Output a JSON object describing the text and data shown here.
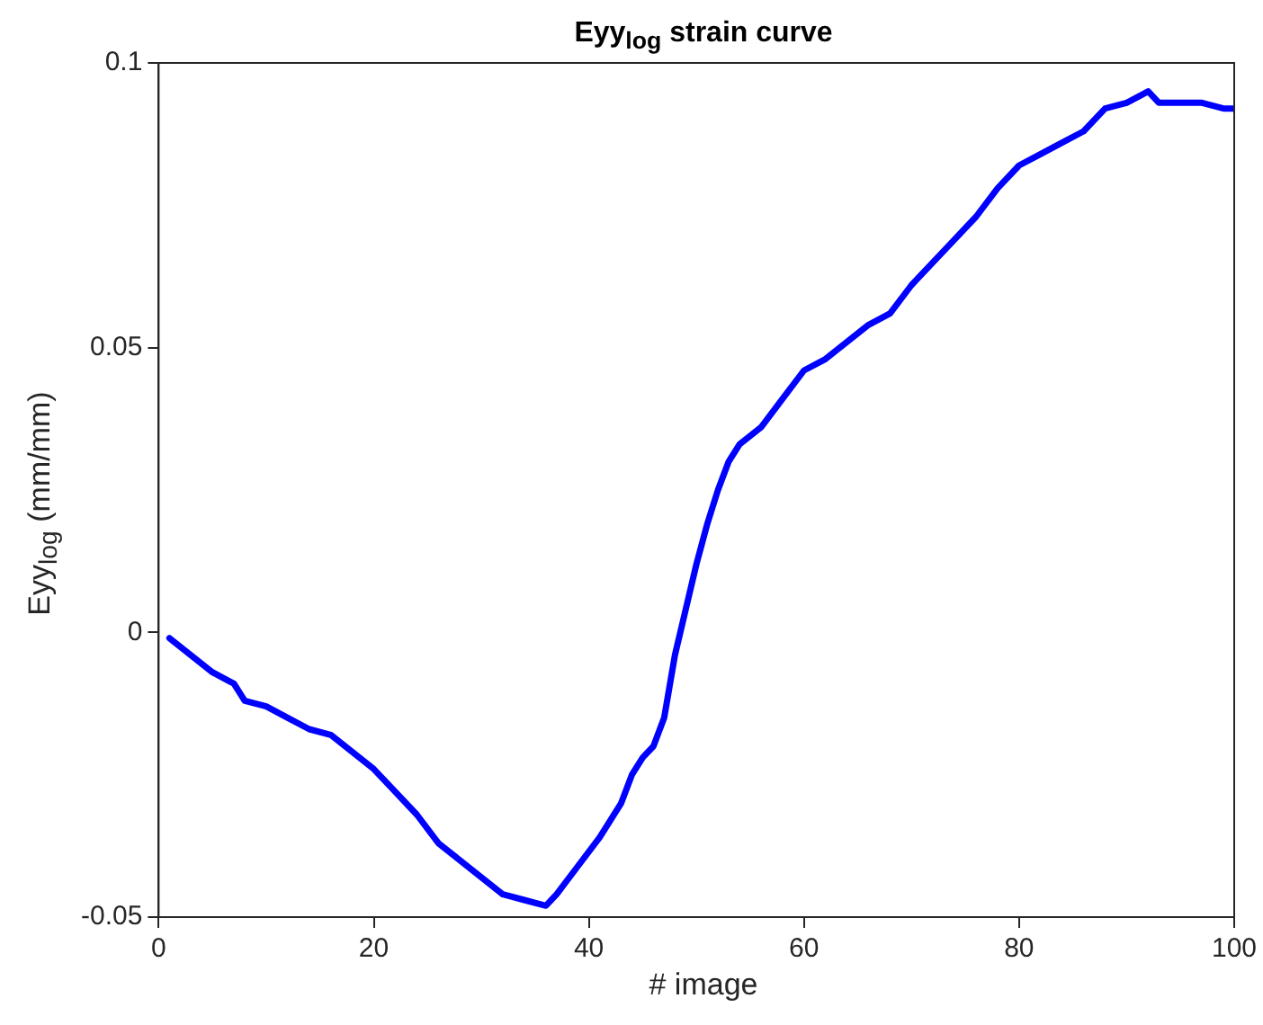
{
  "chart_data": {
    "type": "line",
    "title": "Eyy$_{log}$ strain curve",
    "xlabel": "# image",
    "ylabel": "Eyy$_{log}$ (mm/mm)",
    "xlim": [
      0,
      100
    ],
    "xticks": [
      0,
      20,
      40,
      60,
      80,
      100
    ],
    "ylim": [
      -0.05,
      0.1
    ],
    "yticks": [
      -0.05,
      0,
      0.05,
      0.1
    ],
    "grid": false,
    "legend": false,
    "marker": "none",
    "line_style": "solid",
    "series": [
      {
        "color": "#0000ff",
        "x": [
          1,
          3,
          5,
          7,
          8,
          10,
          12,
          14,
          16,
          18,
          20,
          22,
          24,
          26,
          28,
          30,
          32,
          34,
          36,
          37,
          39,
          41,
          43,
          44,
          45,
          46,
          47,
          48,
          49,
          50,
          51,
          52,
          53,
          54,
          56,
          58,
          60,
          62,
          64,
          66,
          68,
          70,
          72,
          74,
          76,
          78,
          80,
          82,
          84,
          86,
          88,
          90,
          92,
          93,
          95,
          97,
          99,
          100
        ],
        "values": [
          -0.001,
          -0.004,
          -0.007,
          -0.009,
          -0.012,
          -0.013,
          -0.015,
          -0.017,
          -0.018,
          -0.021,
          -0.024,
          -0.028,
          -0.032,
          -0.037,
          -0.04,
          -0.043,
          -0.046,
          -0.047,
          -0.048,
          -0.046,
          -0.041,
          -0.036,
          -0.03,
          -0.025,
          -0.022,
          -0.02,
          -0.015,
          -0.004,
          0.004,
          0.012,
          0.019,
          0.025,
          0.03,
          0.033,
          0.036,
          0.041,
          0.046,
          0.048,
          0.051,
          0.054,
          0.056,
          0.061,
          0.065,
          0.069,
          0.073,
          0.078,
          0.082,
          0.084,
          0.086,
          0.088,
          0.092,
          0.093,
          0.095,
          0.093,
          0.093,
          0.093,
          0.092,
          0.092
        ]
      }
    ]
  }
}
